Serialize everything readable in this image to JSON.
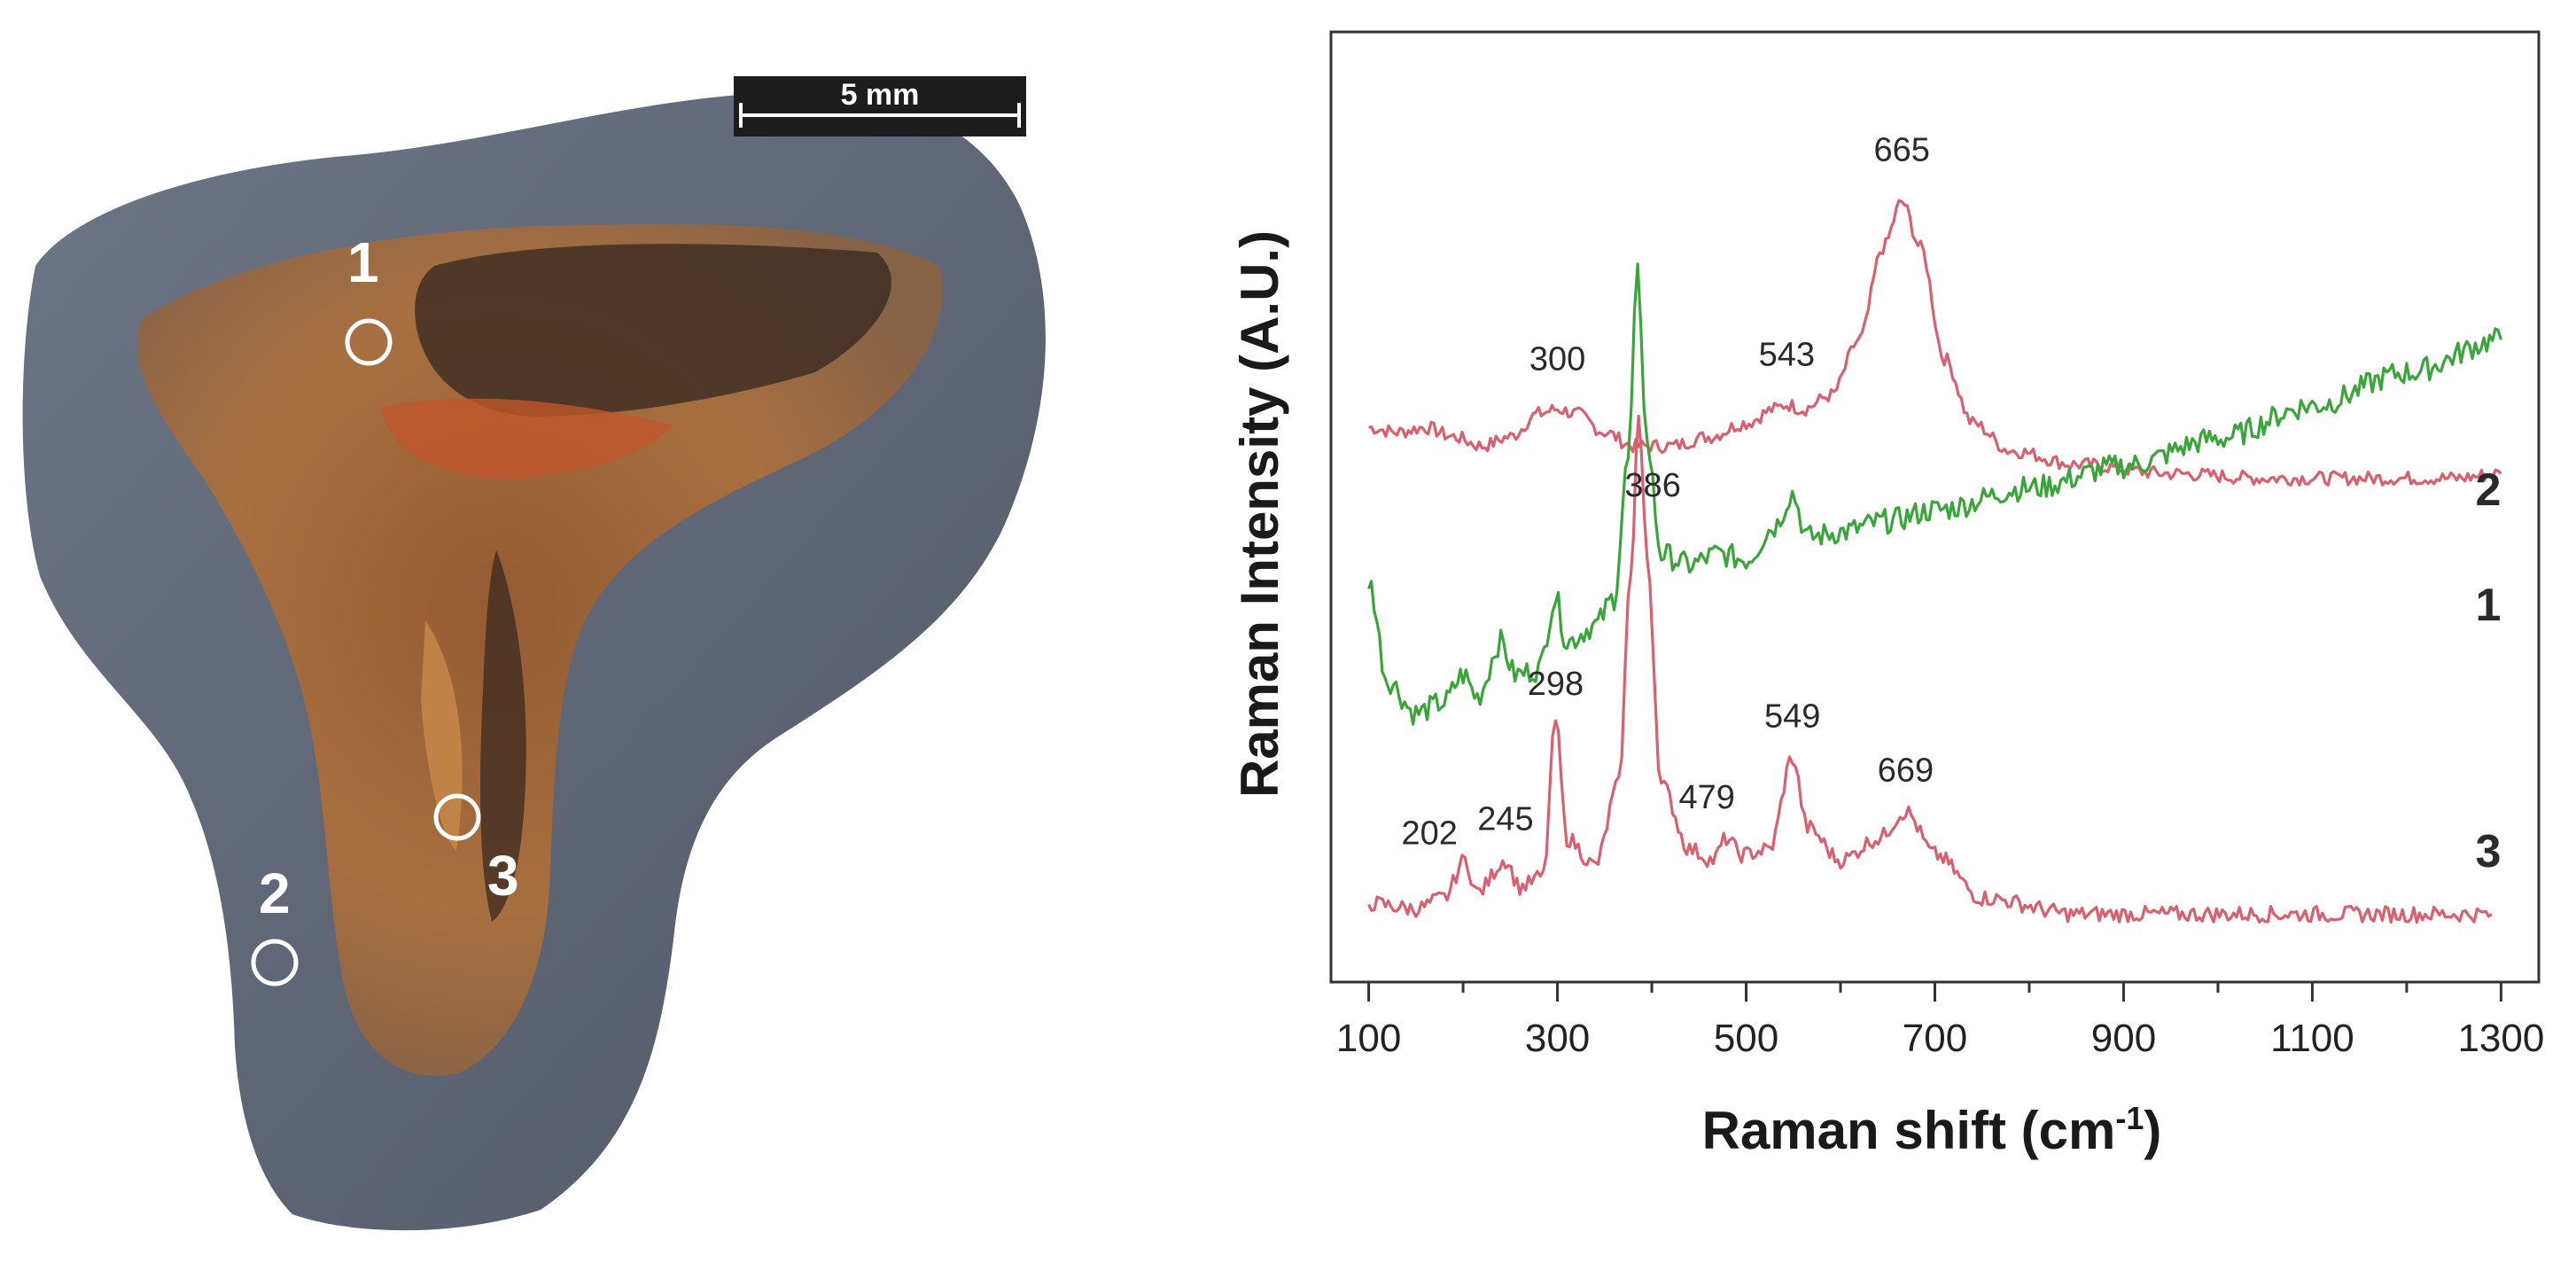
{
  "sample_image": {
    "scale_bar": "5 mm",
    "points": [
      {
        "label": "1"
      },
      {
        "label": "2"
      },
      {
        "label": "3"
      }
    ]
  },
  "chart_data": {
    "type": "line",
    "xlabel": "Raman shift (cm",
    "xlabel_sup": "-1",
    "xlabel_end": ")",
    "ylabel": "Raman Intensity (A.U.)",
    "xlim": [
      60,
      1340
    ],
    "x_ticks": [
      100,
      300,
      500,
      700,
      900,
      1100,
      1300
    ],
    "x_tick_labels": [
      "100",
      "300",
      "500",
      "700",
      "900",
      "1100",
      "1300"
    ],
    "grid": false,
    "series": [
      {
        "name": "2",
        "color": "#d9606e",
        "points": [
          [
            100,
            0.23
          ],
          [
            130,
            0.22
          ],
          [
            160,
            0.23
          ],
          [
            190,
            0.21
          ],
          [
            220,
            0.19
          ],
          [
            250,
            0.21
          ],
          [
            280,
            0.26
          ],
          [
            300,
            0.27
          ],
          [
            320,
            0.26
          ],
          [
            350,
            0.22
          ],
          [
            380,
            0.19
          ],
          [
            420,
            0.19
          ],
          [
            460,
            0.21
          ],
          [
            500,
            0.24
          ],
          [
            530,
            0.27
          ],
          [
            543,
            0.28
          ],
          [
            560,
            0.27
          ],
          [
            590,
            0.3
          ],
          [
            620,
            0.42
          ],
          [
            645,
            0.62
          ],
          [
            665,
            0.72
          ],
          [
            685,
            0.62
          ],
          [
            710,
            0.38
          ],
          [
            740,
            0.24
          ],
          [
            780,
            0.18
          ],
          [
            850,
            0.15
          ],
          [
            950,
            0.13
          ],
          [
            1050,
            0.12
          ],
          [
            1150,
            0.12
          ],
          [
            1250,
            0.12
          ],
          [
            1300,
            0.13
          ]
        ],
        "peaks": [
          300,
          543,
          665
        ]
      },
      {
        "name": "1",
        "color": "#3aa53a",
        "points": [
          [
            100,
            0.3
          ],
          [
            120,
            0.12
          ],
          [
            150,
            0.06
          ],
          [
            180,
            0.08
          ],
          [
            200,
            0.13
          ],
          [
            215,
            0.09
          ],
          [
            240,
            0.19
          ],
          [
            255,
            0.13
          ],
          [
            280,
            0.14
          ],
          [
            298,
            0.27
          ],
          [
            310,
            0.19
          ],
          [
            340,
            0.22
          ],
          [
            360,
            0.27
          ],
          [
            375,
            0.52
          ],
          [
            385,
            0.86
          ],
          [
            395,
            0.55
          ],
          [
            410,
            0.35
          ],
          [
            440,
            0.33
          ],
          [
            470,
            0.35
          ],
          [
            500,
            0.34
          ],
          [
            530,
            0.4
          ],
          [
            549,
            0.46
          ],
          [
            565,
            0.38
          ],
          [
            600,
            0.39
          ],
          [
            650,
            0.41
          ],
          [
            700,
            0.43
          ],
          [
            800,
            0.47
          ],
          [
            900,
            0.51
          ],
          [
            1000,
            0.56
          ],
          [
            1100,
            0.62
          ],
          [
            1200,
            0.68
          ],
          [
            1300,
            0.74
          ]
        ],
        "peaks": []
      },
      {
        "name": "3",
        "color": "#d9606e",
        "points": [
          [
            100,
            0.08
          ],
          [
            150,
            0.07
          ],
          [
            180,
            0.09
          ],
          [
            202,
            0.16
          ],
          [
            215,
            0.1
          ],
          [
            245,
            0.16
          ],
          [
            260,
            0.11
          ],
          [
            285,
            0.13
          ],
          [
            298,
            0.42
          ],
          [
            310,
            0.2
          ],
          [
            340,
            0.15
          ],
          [
            365,
            0.3
          ],
          [
            378,
            0.7
          ],
          [
            386,
            0.98
          ],
          [
            395,
            0.72
          ],
          [
            410,
            0.3
          ],
          [
            440,
            0.18
          ],
          [
            465,
            0.16
          ],
          [
            479,
            0.2
          ],
          [
            495,
            0.17
          ],
          [
            525,
            0.18
          ],
          [
            549,
            0.35
          ],
          [
            565,
            0.22
          ],
          [
            600,
            0.16
          ],
          [
            640,
            0.2
          ],
          [
            669,
            0.25
          ],
          [
            700,
            0.17
          ],
          [
            750,
            0.09
          ],
          [
            850,
            0.06
          ],
          [
            950,
            0.06
          ],
          [
            1050,
            0.06
          ],
          [
            1150,
            0.06
          ],
          [
            1250,
            0.06
          ],
          [
            1290,
            0.06
          ]
        ],
        "peaks": [
          202,
          245,
          298,
          386,
          479,
          549,
          669
        ]
      }
    ],
    "peak_labels": [
      {
        "series": "2",
        "x": 300,
        "text": "300"
      },
      {
        "series": "2",
        "x": 543,
        "text": "543"
      },
      {
        "series": "2",
        "x": 665,
        "text": "665"
      },
      {
        "series": "3",
        "x": 202,
        "text": "202"
      },
      {
        "series": "3",
        "x": 245,
        "text": "245"
      },
      {
        "series": "3",
        "x": 298,
        "text": "298"
      },
      {
        "series": "3",
        "x": 386,
        "text": "386"
      },
      {
        "series": "3",
        "x": 479,
        "text": "479"
      },
      {
        "series": "3",
        "x": 549,
        "text": "549"
      },
      {
        "series": "3",
        "x": 669,
        "text": "669"
      }
    ]
  }
}
